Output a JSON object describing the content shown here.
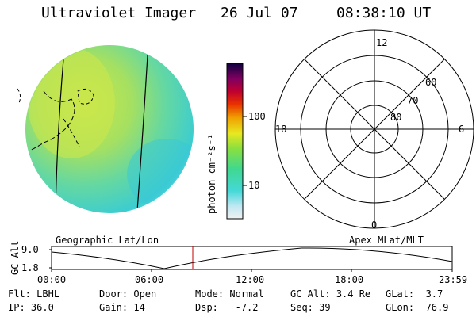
{
  "header": {
    "title": "Ultraviolet Imager",
    "date": "26 Jul 07",
    "time": "08:38:10 UT"
  },
  "colorbar": {
    "unit_label": "photon cm⁻²s⁻¹",
    "ticks": [
      "100",
      "10"
    ]
  },
  "polar": {
    "mlt_labels": {
      "top": "12",
      "left": "18",
      "right": "6",
      "bottom": "0"
    },
    "lat_labels": [
      "60",
      "70",
      "80"
    ]
  },
  "timeline": {
    "y_axis_label": "GC Alt",
    "y_ticks": [
      "9.0",
      "1.8"
    ],
    "left_title": "Geographic Lat/Lon",
    "right_title": "Apex MLat/MLT",
    "x_ticks": [
      "00:00",
      "06:00",
      "12:00",
      "18:00",
      "23:59"
    ],
    "marker_time": "08:38"
  },
  "status": {
    "row1": [
      {
        "label": "Flt:",
        "value": "LBHL"
      },
      {
        "label": "Door:",
        "value": "Open"
      },
      {
        "label": "Mode:",
        "value": "Normal"
      },
      {
        "label": "GC Alt:",
        "value": "3.4 Re"
      },
      {
        "label": "GLat:",
        "value": "3.7"
      }
    ],
    "row2": [
      {
        "label": "IP:",
        "value": "36.0"
      },
      {
        "label": "Gain:",
        "value": "14"
      },
      {
        "label": "Dsp:",
        "value": "-7.2"
      },
      {
        "label": "Seq:",
        "value": "39"
      },
      {
        "label": "GLon:",
        "value": "76.9"
      }
    ]
  },
  "colors": {
    "marker": "#c00000",
    "grid": "#000000"
  }
}
